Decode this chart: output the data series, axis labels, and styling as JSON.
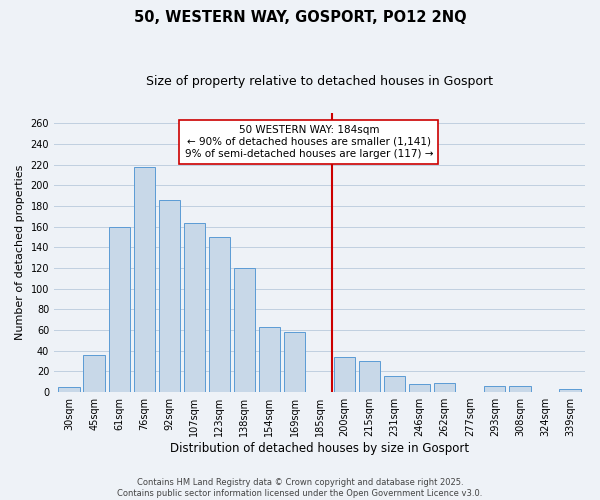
{
  "title": "50, WESTERN WAY, GOSPORT, PO12 2NQ",
  "subtitle": "Size of property relative to detached houses in Gosport",
  "xlabel": "Distribution of detached houses by size in Gosport",
  "ylabel": "Number of detached properties",
  "categories": [
    "30sqm",
    "45sqm",
    "61sqm",
    "76sqm",
    "92sqm",
    "107sqm",
    "123sqm",
    "138sqm",
    "154sqm",
    "169sqm",
    "185sqm",
    "200sqm",
    "215sqm",
    "231sqm",
    "246sqm",
    "262sqm",
    "277sqm",
    "293sqm",
    "308sqm",
    "324sqm",
    "339sqm"
  ],
  "values": [
    5,
    36,
    160,
    218,
    186,
    163,
    150,
    120,
    63,
    58,
    0,
    34,
    30,
    16,
    8,
    9,
    0,
    6,
    6,
    0,
    3
  ],
  "bar_color": "#c8d8e8",
  "bar_edge_color": "#5b9bd5",
  "grid_color": "#c0cfe0",
  "vline_x": 10.5,
  "vline_color": "#cc0000",
  "annotation_title": "50 WESTERN WAY: 184sqm",
  "annotation_line1": "← 90% of detached houses are smaller (1,141)",
  "annotation_line2": "9% of semi-detached houses are larger (117) →",
  "ylim": [
    0,
    270
  ],
  "yticks": [
    0,
    20,
    40,
    60,
    80,
    100,
    120,
    140,
    160,
    180,
    200,
    220,
    240,
    260
  ],
  "footer1": "Contains HM Land Registry data © Crown copyright and database right 2025.",
  "footer2": "Contains public sector information licensed under the Open Government Licence v3.0.",
  "bg_color": "#eef2f7",
  "title_fontsize": 10.5,
  "subtitle_fontsize": 9,
  "tick_fontsize": 7,
  "xlabel_fontsize": 8.5,
  "ylabel_fontsize": 8,
  "footer_fontsize": 6,
  "ann_fontsize": 7.5
}
